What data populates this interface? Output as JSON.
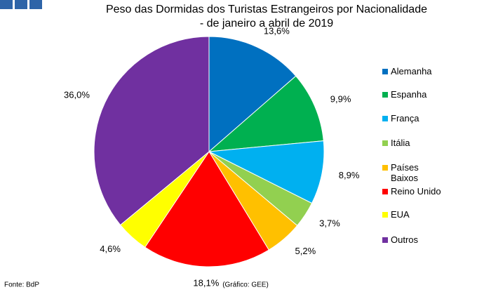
{
  "chart_data": {
    "type": "pie",
    "title": "Peso das Dormidas dos Turistas Estrangeiros por Nacionalidade",
    "subtitle": "- de janeiro a abril de 2019",
    "categories": [
      "Alemanha",
      "Espanha",
      "França",
      "Itália",
      "Países Baixos",
      "Reino Unido",
      "EUA",
      "Outros"
    ],
    "values": [
      13.6,
      9.9,
      8.9,
      3.7,
      5.2,
      18.1,
      4.6,
      36.0
    ],
    "value_labels": [
      "13,6%",
      "9,9%",
      "8,9%",
      "3,7%",
      "5,2%",
      "18,1%",
      "4,6%",
      "36,0%"
    ],
    "colors": [
      "#0070c0",
      "#00b050",
      "#00b0f0",
      "#92d050",
      "#ffc000",
      "#ff0000",
      "#ffff00",
      "#7030a0"
    ],
    "source": "Fonte: BdP",
    "credit": "(Gráfico: GEE)"
  }
}
